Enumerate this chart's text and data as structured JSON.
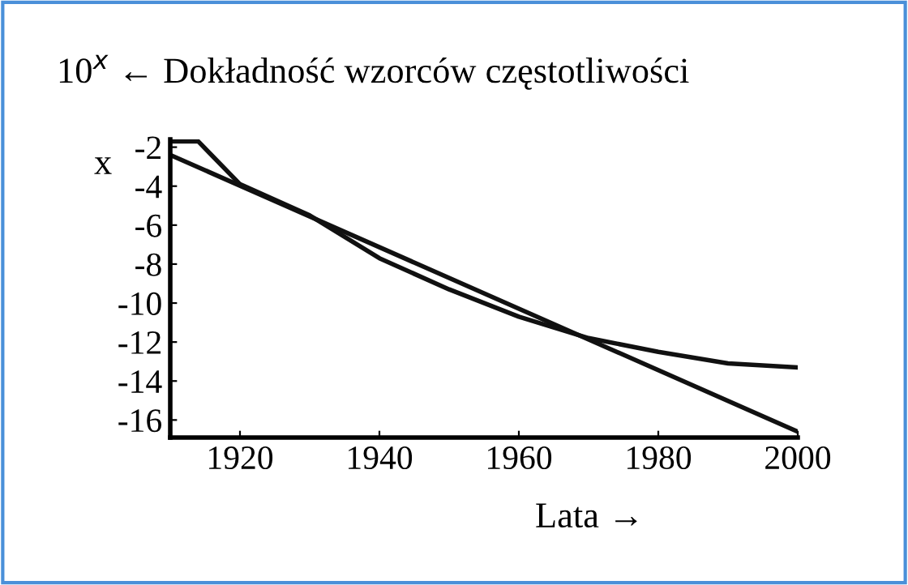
{
  "chart_data": {
    "type": "line",
    "title": "10$^{x}$ ← Dokładność wzorców częstotliwości",
    "ylabel": "x",
    "xlabel": "Lata →",
    "series": [
      {
        "color": "#111111",
        "x": [
          1910,
          2000
        ],
        "values": [
          -2.4,
          -16.6
        ]
      },
      {
        "color": "#111111",
        "x": [
          1910,
          1914,
          1920,
          1930,
          1940,
          1950,
          1960,
          1970,
          1980,
          1990,
          2000
        ],
        "values": [
          -1.7,
          -1.7,
          -3.9,
          -5.5,
          -7.7,
          -9.3,
          -10.7,
          -11.8,
          -12.5,
          -13.1,
          -13.3
        ]
      }
    ],
    "xlim": [
      1910,
      2000
    ],
    "xticks": [
      1920,
      1940,
      1960,
      1980,
      2000
    ],
    "ylim": [
      -16.9,
      -1.6
    ],
    "yticks": [
      -2,
      -4,
      -6,
      -8,
      -10,
      -12,
      -14,
      -16
    ],
    "grid": false,
    "legend": false,
    "marker": "none",
    "line_style": "solid"
  }
}
